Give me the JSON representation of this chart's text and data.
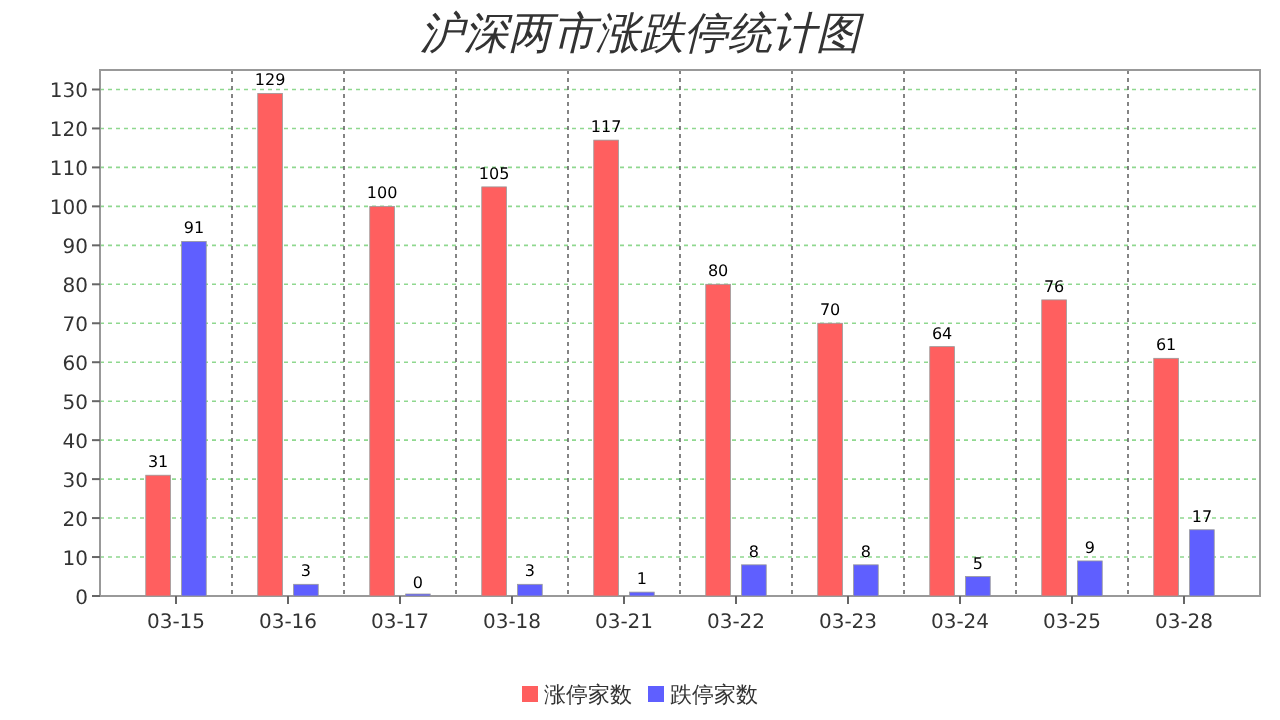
{
  "chart_data": {
    "type": "bar",
    "title": "沪深两市涨跌停统计图",
    "categories": [
      "03-15",
      "03-16",
      "03-17",
      "03-18",
      "03-21",
      "03-22",
      "03-23",
      "03-24",
      "03-25",
      "03-28"
    ],
    "series": [
      {
        "name": "涨停家数",
        "color": "#ff5f5f",
        "values": [
          31,
          129,
          100,
          105,
          117,
          80,
          70,
          64,
          76,
          61
        ]
      },
      {
        "name": "跌停家数",
        "color": "#5f5fff",
        "values": [
          91,
          3,
          0,
          3,
          1,
          8,
          8,
          5,
          9,
          17
        ]
      }
    ],
    "ylim": [
      0,
      135
    ],
    "yticks": [
      0,
      10,
      20,
      30,
      40,
      50,
      60,
      70,
      80,
      90,
      100,
      110,
      120,
      130
    ],
    "grid": true,
    "legend": "bottom",
    "data_labels": true
  }
}
